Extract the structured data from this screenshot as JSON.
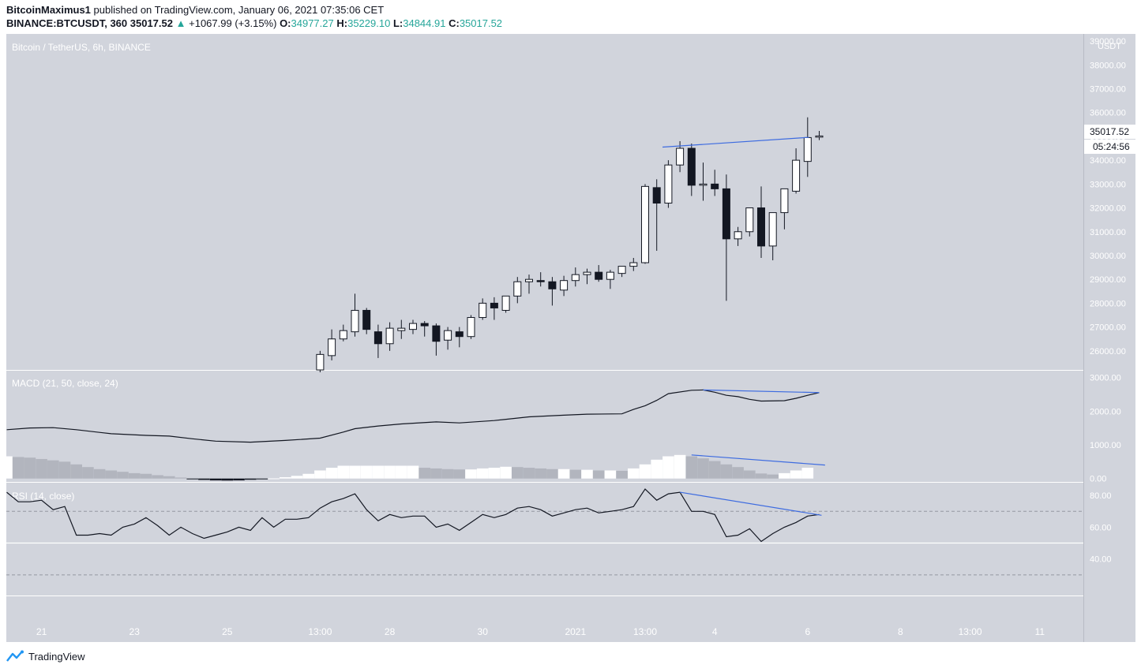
{
  "header": {
    "publisher": "BitcoinMaximus1",
    "published_text": "published on TradingView.com, January 06, 2021 07:35:06 CET",
    "symbol": "BINANCE:BTCUSDT, 360",
    "last_price": "35017.52",
    "change": "+1067.99 (+3.15%)",
    "o_label": "O:",
    "o_value": "34977.27",
    "h_label": "H:",
    "h_value": "35229.10",
    "l_label": "L:",
    "l_value": "34844.91",
    "c_label": "C:",
    "c_value": "35017.52"
  },
  "colors": {
    "panel_bg": "#d1d4dc",
    "axis_bg": "#d1d4dc",
    "trendline": "#3d6be0",
    "candle_up": "#ffffff",
    "candle_down": "#131722",
    "hist_neg": "#b2b5be",
    "up_text": "#26a69a"
  },
  "price_panel": {
    "title": "Bitcoin / TetherUS, 6h, BINANCE",
    "currency": "USDT",
    "price_label": "35017.52",
    "countdown": "05:24:56",
    "axis_ticks": [
      26000,
      27000,
      28000,
      29000,
      30000,
      31000,
      32000,
      33000,
      34000,
      35000,
      36000,
      37000,
      38000,
      39000
    ],
    "ylim": [
      25200,
      39300
    ]
  },
  "macd_panel": {
    "title": "MACD (21, 50, close, 24)",
    "axis_ticks": [
      0,
      1000,
      2000,
      3000
    ],
    "ylim": [
      -100,
      3200
    ]
  },
  "rsi_panel": {
    "title": "RSI (14, close)",
    "axis_ticks": [
      40,
      60,
      80
    ],
    "ylim": [
      17,
      88
    ],
    "band_upper": 70,
    "band_lower": 30,
    "midline": 50
  },
  "x_axis": {
    "labels": [
      {
        "i": 3,
        "t": "21"
      },
      {
        "i": 11,
        "t": "23"
      },
      {
        "i": 19,
        "t": "25"
      },
      {
        "i": 27,
        "t": "13:00"
      },
      {
        "i": 33,
        "t": "28"
      },
      {
        "i": 41,
        "t": "30"
      },
      {
        "i": 49,
        "t": "2021"
      },
      {
        "i": 55,
        "t": "13:00"
      },
      {
        "i": 61,
        "t": "4"
      },
      {
        "i": 69,
        "t": "6"
      },
      {
        "i": 77,
        "t": "8"
      },
      {
        "i": 83,
        "t": "13:00"
      },
      {
        "i": 89,
        "t": "11"
      }
    ]
  },
  "footer": {
    "brand": "TradingView"
  },
  "chart_data": {
    "type": "candlestick",
    "symbol": "BTCUSDT",
    "interval": "6h",
    "first_index": 27,
    "candles": [
      {
        "o": 25200,
        "h": 26000,
        "l": 25100,
        "c": 25850
      },
      {
        "o": 25800,
        "h": 26900,
        "l": 25600,
        "c": 26500
      },
      {
        "o": 26500,
        "h": 27100,
        "l": 26400,
        "c": 26850
      },
      {
        "o": 26800,
        "h": 28400,
        "l": 26600,
        "c": 27700
      },
      {
        "o": 27700,
        "h": 27800,
        "l": 26700,
        "c": 26900
      },
      {
        "o": 26800,
        "h": 27100,
        "l": 25700,
        "c": 26300
      },
      {
        "o": 26300,
        "h": 27200,
        "l": 26000,
        "c": 26950
      },
      {
        "o": 26850,
        "h": 27300,
        "l": 26500,
        "c": 26950
      },
      {
        "o": 26900,
        "h": 27300,
        "l": 26700,
        "c": 27150
      },
      {
        "o": 27150,
        "h": 27250,
        "l": 26600,
        "c": 27050
      },
      {
        "o": 27050,
        "h": 27150,
        "l": 25800,
        "c": 26400
      },
      {
        "o": 26450,
        "h": 27000,
        "l": 26050,
        "c": 26850
      },
      {
        "o": 26800,
        "h": 27000,
        "l": 26150,
        "c": 26600
      },
      {
        "o": 26600,
        "h": 27500,
        "l": 26500,
        "c": 27400
      },
      {
        "o": 27400,
        "h": 28200,
        "l": 27300,
        "c": 28000
      },
      {
        "o": 28000,
        "h": 28250,
        "l": 27300,
        "c": 27800
      },
      {
        "o": 27700,
        "h": 28300,
        "l": 27600,
        "c": 28300
      },
      {
        "o": 28300,
        "h": 29100,
        "l": 28000,
        "c": 28900
      },
      {
        "o": 28900,
        "h": 29200,
        "l": 28400,
        "c": 29000
      },
      {
        "o": 28950,
        "h": 29300,
        "l": 28700,
        "c": 28900
      },
      {
        "o": 28900,
        "h": 29100,
        "l": 27900,
        "c": 28600
      },
      {
        "o": 28550,
        "h": 29150,
        "l": 28300,
        "c": 28950
      },
      {
        "o": 28950,
        "h": 29500,
        "l": 28700,
        "c": 29200
      },
      {
        "o": 29200,
        "h": 29450,
        "l": 28800,
        "c": 29300
      },
      {
        "o": 29300,
        "h": 29600,
        "l": 28900,
        "c": 29000
      },
      {
        "o": 29000,
        "h": 29400,
        "l": 28600,
        "c": 29300
      },
      {
        "o": 29250,
        "h": 29550,
        "l": 29100,
        "c": 29550
      },
      {
        "o": 29550,
        "h": 29900,
        "l": 29350,
        "c": 29700
      },
      {
        "o": 29700,
        "h": 33000,
        "l": 29650,
        "c": 32900
      },
      {
        "o": 32850,
        "h": 33200,
        "l": 30200,
        "c": 32200
      },
      {
        "o": 32200,
        "h": 34000,
        "l": 32000,
        "c": 33800
      },
      {
        "o": 33800,
        "h": 34800,
        "l": 33500,
        "c": 34500
      },
      {
        "o": 34500,
        "h": 34700,
        "l": 32500,
        "c": 32950
      },
      {
        "o": 32950,
        "h": 33900,
        "l": 32300,
        "c": 33000
      },
      {
        "o": 33000,
        "h": 33600,
        "l": 32500,
        "c": 32800
      },
      {
        "o": 32800,
        "h": 33400,
        "l": 28100,
        "c": 30700
      },
      {
        "o": 30700,
        "h": 31200,
        "l": 30400,
        "c": 31000
      },
      {
        "o": 31000,
        "h": 32000,
        "l": 30800,
        "c": 32000
      },
      {
        "o": 32000,
        "h": 32900,
        "l": 29900,
        "c": 30400
      },
      {
        "o": 30400,
        "h": 31800,
        "l": 29800,
        "c": 31800
      },
      {
        "o": 31800,
        "h": 32800,
        "l": 31100,
        "c": 32800
      },
      {
        "o": 32700,
        "h": 34500,
        "l": 32600,
        "c": 34000
      },
      {
        "o": 33950,
        "h": 35800,
        "l": 33300,
        "c": 34950
      },
      {
        "o": 34977.27,
        "h": 35229.1,
        "l": 34844.91,
        "c": 35017.52
      }
    ],
    "price_trendline": [
      {
        "i": 56.5,
        "v": 34550
      },
      {
        "i": 69.1,
        "v": 34960
      }
    ],
    "macd_line": [
      {
        "i": 0,
        "v": 1450
      },
      {
        "i": 2,
        "v": 1500
      },
      {
        "i": 4,
        "v": 1510
      },
      {
        "i": 6,
        "v": 1450
      },
      {
        "i": 9,
        "v": 1330
      },
      {
        "i": 12,
        "v": 1280
      },
      {
        "i": 14,
        "v": 1260
      },
      {
        "i": 16,
        "v": 1180
      },
      {
        "i": 18,
        "v": 1110
      },
      {
        "i": 21,
        "v": 1080
      },
      {
        "i": 24,
        "v": 1130
      },
      {
        "i": 27,
        "v": 1200
      },
      {
        "i": 29,
        "v": 1380
      },
      {
        "i": 30,
        "v": 1480
      },
      {
        "i": 32,
        "v": 1560
      },
      {
        "i": 34,
        "v": 1620
      },
      {
        "i": 37,
        "v": 1680
      },
      {
        "i": 39,
        "v": 1650
      },
      {
        "i": 42,
        "v": 1720
      },
      {
        "i": 45,
        "v": 1830
      },
      {
        "i": 48,
        "v": 1880
      },
      {
        "i": 50,
        "v": 1910
      },
      {
        "i": 53,
        "v": 1920
      },
      {
        "i": 54,
        "v": 2050
      },
      {
        "i": 55,
        "v": 2160
      },
      {
        "i": 56,
        "v": 2320
      },
      {
        "i": 57,
        "v": 2520
      },
      {
        "i": 59,
        "v": 2620
      },
      {
        "i": 60,
        "v": 2630
      },
      {
        "i": 61,
        "v": 2560
      },
      {
        "i": 62,
        "v": 2470
      },
      {
        "i": 63,
        "v": 2430
      },
      {
        "i": 64,
        "v": 2350
      },
      {
        "i": 65,
        "v": 2300
      },
      {
        "i": 67,
        "v": 2310
      },
      {
        "i": 68,
        "v": 2380
      },
      {
        "i": 69,
        "v": 2470
      },
      {
        "i": 70,
        "v": 2550
      }
    ],
    "macd_trendline": [
      {
        "i": 60,
        "v": 2630
      },
      {
        "i": 70,
        "v": 2550
      }
    ],
    "macd_histogram": [
      660,
      640,
      620,
      580,
      540,
      500,
      420,
      340,
      280,
      240,
      200,
      160,
      140,
      100,
      70,
      30,
      -20,
      -40,
      -55,
      -60,
      -55,
      -35,
      -20,
      5,
      40,
      80,
      140,
      240,
      320,
      380,
      380,
      380,
      380,
      380,
      380,
      380,
      320,
      300,
      280,
      270,
      270,
      300,
      320,
      350,
      340,
      320,
      300,
      280,
      280,
      260,
      260,
      240,
      240,
      230,
      300,
      420,
      560,
      660,
      700,
      660,
      600,
      520,
      420,
      340,
      240,
      150,
      120,
      160,
      240,
      320
    ],
    "macd_hist_trendline": [
      {
        "i": 59,
        "v": 700
      },
      {
        "i": 70.5,
        "v": 400
      }
    ],
    "rsi_line": [
      {
        "i": 0,
        "v": 82
      },
      {
        "i": 1,
        "v": 76
      },
      {
        "i": 2,
        "v": 76
      },
      {
        "i": 3,
        "v": 77
      },
      {
        "i": 4,
        "v": 71
      },
      {
        "i": 5,
        "v": 73
      },
      {
        "i": 6,
        "v": 55
      },
      {
        "i": 7,
        "v": 55
      },
      {
        "i": 8,
        "v": 56
      },
      {
        "i": 9,
        "v": 55
      },
      {
        "i": 10,
        "v": 60
      },
      {
        "i": 11,
        "v": 62
      },
      {
        "i": 12,
        "v": 66
      },
      {
        "i": 13,
        "v": 61
      },
      {
        "i": 14,
        "v": 55
      },
      {
        "i": 15,
        "v": 60
      },
      {
        "i": 16,
        "v": 56
      },
      {
        "i": 17,
        "v": 53
      },
      {
        "i": 18,
        "v": 55
      },
      {
        "i": 19,
        "v": 57
      },
      {
        "i": 20,
        "v": 60
      },
      {
        "i": 21,
        "v": 58
      },
      {
        "i": 22,
        "v": 66
      },
      {
        "i": 23,
        "v": 60
      },
      {
        "i": 24,
        "v": 65
      },
      {
        "i": 25,
        "v": 65
      },
      {
        "i": 26,
        "v": 66
      },
      {
        "i": 27,
        "v": 72
      },
      {
        "i": 28,
        "v": 76
      },
      {
        "i": 29,
        "v": 78
      },
      {
        "i": 30,
        "v": 81
      },
      {
        "i": 31,
        "v": 71
      },
      {
        "i": 32,
        "v": 64
      },
      {
        "i": 33,
        "v": 68
      },
      {
        "i": 34,
        "v": 66
      },
      {
        "i": 35,
        "v": 67
      },
      {
        "i": 36,
        "v": 67
      },
      {
        "i": 37,
        "v": 60
      },
      {
        "i": 38,
        "v": 62
      },
      {
        "i": 39,
        "v": 58
      },
      {
        "i": 40,
        "v": 63
      },
      {
        "i": 41,
        "v": 68
      },
      {
        "i": 42,
        "v": 66
      },
      {
        "i": 43,
        "v": 68
      },
      {
        "i": 44,
        "v": 72
      },
      {
        "i": 45,
        "v": 73
      },
      {
        "i": 46,
        "v": 71
      },
      {
        "i": 47,
        "v": 67
      },
      {
        "i": 48,
        "v": 69
      },
      {
        "i": 49,
        "v": 71
      },
      {
        "i": 50,
        "v": 72
      },
      {
        "i": 51,
        "v": 69
      },
      {
        "i": 52,
        "v": 70
      },
      {
        "i": 53,
        "v": 71
      },
      {
        "i": 54,
        "v": 73
      },
      {
        "i": 55,
        "v": 84
      },
      {
        "i": 56,
        "v": 77
      },
      {
        "i": 57,
        "v": 81
      },
      {
        "i": 58,
        "v": 82
      },
      {
        "i": 59,
        "v": 70
      },
      {
        "i": 60,
        "v": 70
      },
      {
        "i": 61,
        "v": 68
      },
      {
        "i": 62,
        "v": 54
      },
      {
        "i": 63,
        "v": 55
      },
      {
        "i": 64,
        "v": 59
      },
      {
        "i": 65,
        "v": 51
      },
      {
        "i": 66,
        "v": 56
      },
      {
        "i": 67,
        "v": 60
      },
      {
        "i": 68,
        "v": 63
      },
      {
        "i": 69,
        "v": 67
      },
      {
        "i": 70,
        "v": 68
      }
    ],
    "rsi_trendline": [
      {
        "i": 58,
        "v": 82
      },
      {
        "i": 70.2,
        "v": 67.5
      }
    ]
  }
}
